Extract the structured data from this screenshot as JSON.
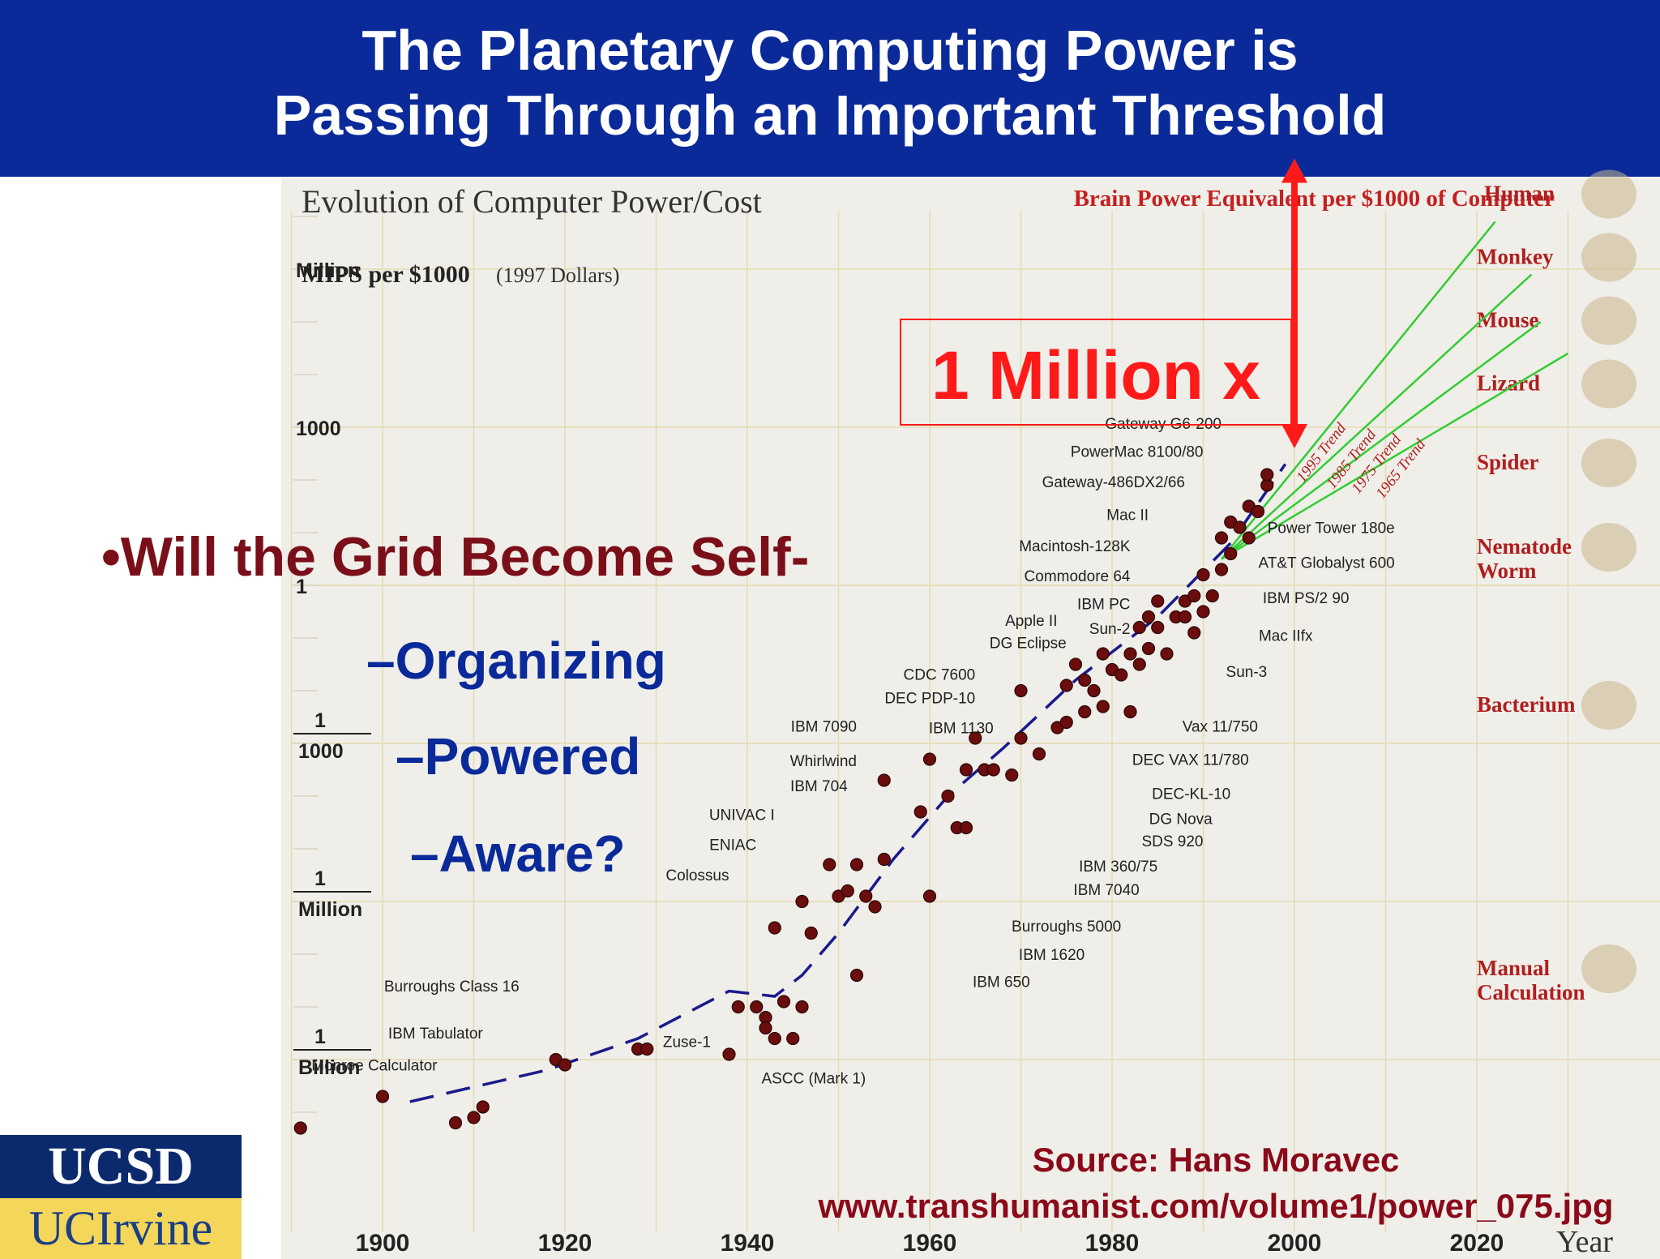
{
  "header": {
    "title": "The Planetary Computing Power is\nPassing Through an Important Threshold"
  },
  "bullets": {
    "main": "•Will the Grid Become Self-",
    "sub": [
      "–Organizing",
      "–Powered",
      "–Aware?"
    ]
  },
  "logo": {
    "top": "UCSD",
    "bottom": "UCIrvine"
  },
  "colors": {
    "header_bg": "#0b2a9a",
    "bullet_main": "#7a0f1a",
    "bullet_sub": "#0b2a9a",
    "annotation_red": "#ff1a1a",
    "source_text": "#8b0a1a",
    "dot": "#6b0d0d",
    "trend": "#33cc33",
    "dash": "#1a1a8c"
  },
  "chart_data": {
    "type": "scatter",
    "title": "Evolution of Computer Power/Cost",
    "ylabel_bold": "MIPS per $1000",
    "ylabel_note": "(1997 Dollars)",
    "right_title": "Brain Power Equivalent per $1000 of Computer",
    "xlabel": "Year",
    "y_scale": "log",
    "xlim": [
      1890,
      2030
    ],
    "ylim_log10": [
      -10.5,
      7.5
    ],
    "x_ticks": [
      1900,
      1920,
      1940,
      1960,
      1980,
      2000,
      2020
    ],
    "y_ticks": [
      {
        "log10": 6,
        "label": "Million"
      },
      {
        "log10": 3,
        "label": "1000"
      },
      {
        "log10": 0,
        "label": "1"
      },
      {
        "log10": -3,
        "label": "1\n1000"
      },
      {
        "log10": -6,
        "label": "1\nMillion"
      },
      {
        "log10": -9,
        "label": "1\nBillion"
      }
    ],
    "points": [
      {
        "x": 1891,
        "y": -10.3
      },
      {
        "x": 1900,
        "y": -9.7
      },
      {
        "x": 1908,
        "y": -10.2
      },
      {
        "x": 1910,
        "y": -10.1
      },
      {
        "x": 1911,
        "y": -9.9
      },
      {
        "x": 1919,
        "y": -9.0
      },
      {
        "x": 1920,
        "y": -9.1
      },
      {
        "x": 1928,
        "y": -8.8
      },
      {
        "x": 1929,
        "y": -8.8
      },
      {
        "x": 1938,
        "y": -8.9
      },
      {
        "x": 1939,
        "y": -8.0
      },
      {
        "x": 1941,
        "y": -8.0
      },
      {
        "x": 1942,
        "y": -8.2
      },
      {
        "x": 1942,
        "y": -8.4
      },
      {
        "x": 1943,
        "y": -8.6
      },
      {
        "x": 1944,
        "y": -7.9
      },
      {
        "x": 1945,
        "y": -8.6
      },
      {
        "x": 1946,
        "y": -8.0
      },
      {
        "x": 1943,
        "y": -6.5
      },
      {
        "x": 1946,
        "y": -6.0
      },
      {
        "x": 1947,
        "y": -6.6
      },
      {
        "x": 1949,
        "y": -5.3
      },
      {
        "x": 1950,
        "y": -5.9
      },
      {
        "x": 1951,
        "y": -5.8
      },
      {
        "x": 1952,
        "y": -5.3
      },
      {
        "x": 1952,
        "y": -7.4
      },
      {
        "x": 1953,
        "y": -5.9
      },
      {
        "x": 1954,
        "y": -6.1
      },
      {
        "x": 1955,
        "y": -3.7
      },
      {
        "x": 1955,
        "y": -5.2
      },
      {
        "x": 1959,
        "y": -4.3
      },
      {
        "x": 1960,
        "y": -3.3
      },
      {
        "x": 1960,
        "y": -5.9
      },
      {
        "x": 1962,
        "y": -4.0
      },
      {
        "x": 1963,
        "y": -4.6
      },
      {
        "x": 1964,
        "y": -4.6
      },
      {
        "x": 1964,
        "y": -3.5
      },
      {
        "x": 1965,
        "y": -2.9
      },
      {
        "x": 1966,
        "y": -3.5
      },
      {
        "x": 1967,
        "y": -3.5
      },
      {
        "x": 1969,
        "y": -3.6
      },
      {
        "x": 1970,
        "y": -2.9
      },
      {
        "x": 1970,
        "y": -2.0
      },
      {
        "x": 1972,
        "y": -3.2
      },
      {
        "x": 1974,
        "y": -2.7
      },
      {
        "x": 1975,
        "y": -2.6
      },
      {
        "x": 1975,
        "y": -1.9
      },
      {
        "x": 1976,
        "y": -1.5
      },
      {
        "x": 1977,
        "y": -2.4
      },
      {
        "x": 1977,
        "y": -1.8
      },
      {
        "x": 1978,
        "y": -2.0
      },
      {
        "x": 1979,
        "y": -1.3
      },
      {
        "x": 1979,
        "y": -2.3
      },
      {
        "x": 1980,
        "y": -1.6
      },
      {
        "x": 1981,
        "y": -1.7
      },
      {
        "x": 1982,
        "y": -2.4
      },
      {
        "x": 1982,
        "y": -1.3
      },
      {
        "x": 1983,
        "y": -0.8
      },
      {
        "x": 1983,
        "y": -1.5
      },
      {
        "x": 1984,
        "y": -1.2
      },
      {
        "x": 1984,
        "y": -0.6
      },
      {
        "x": 1985,
        "y": -0.8
      },
      {
        "x": 1985,
        "y": -0.3
      },
      {
        "x": 1986,
        "y": -1.3
      },
      {
        "x": 1987,
        "y": -0.6
      },
      {
        "x": 1988,
        "y": -0.6
      },
      {
        "x": 1988,
        "y": -0.3
      },
      {
        "x": 1989,
        "y": -0.9
      },
      {
        "x": 1989,
        "y": -0.2
      },
      {
        "x": 1990,
        "y": -0.5
      },
      {
        "x": 1990,
        "y": 0.2
      },
      {
        "x": 1991,
        "y": -0.2
      },
      {
        "x": 1992,
        "y": 0.3
      },
      {
        "x": 1992,
        "y": 0.9
      },
      {
        "x": 1993,
        "y": 0.6
      },
      {
        "x": 1993,
        "y": 1.2
      },
      {
        "x": 1994,
        "y": 1.1
      },
      {
        "x": 1995,
        "y": 1.5
      },
      {
        "x": 1995,
        "y": 0.9
      },
      {
        "x": 1996,
        "y": 1.4
      },
      {
        "x": 1997,
        "y": 1.9
      },
      {
        "x": 1997,
        "y": 2.1
      }
    ],
    "point_labels": [
      {
        "text": "Gateway G6-200",
        "x": 1992,
        "y": 2.97
      },
      {
        "text": "PowerMac 8100/80",
        "x": 1990,
        "y": 2.44
      },
      {
        "text": "Gateway-486DX2/66",
        "x": 1988,
        "y": 1.86
      },
      {
        "text": "Mac II",
        "x": 1984,
        "y": 1.24
      },
      {
        "text": "Macintosh-128K",
        "x": 1982,
        "y": 0.65
      },
      {
        "text": "Commodore 64",
        "x": 1982,
        "y": 0.08
      },
      {
        "text": "IBM PC",
        "x": 1982,
        "y": -0.45
      },
      {
        "text": "Sun-2",
        "x": 1982,
        "y": -0.92
      },
      {
        "text": "Apple II",
        "x": 1974,
        "y": -0.77
      },
      {
        "text": "DG Eclipse",
        "x": 1975,
        "y": -1.19
      },
      {
        "text": "CDC 7600",
        "x": 1965,
        "y": -1.79
      },
      {
        "text": "DEC PDP-10",
        "x": 1965,
        "y": -2.24
      },
      {
        "text": "IBM 7090",
        "x": 1952,
        "y": -2.78
      },
      {
        "text": "IBM 1130",
        "x": 1967,
        "y": -2.81
      },
      {
        "text": "Whirlwind",
        "x": 1952,
        "y": -3.43
      },
      {
        "text": "IBM 704",
        "x": 1951,
        "y": -3.91
      },
      {
        "text": "UNIVAC I",
        "x": 1943,
        "y": -4.45
      },
      {
        "text": "ENIAC",
        "x": 1941,
        "y": -5.02
      },
      {
        "text": "Colossus",
        "x": 1938,
        "y": -5.6
      },
      {
        "text": "Power Tower 180e",
        "x": 2011,
        "y": 0.99
      },
      {
        "text": "AT&T Globalyst 600",
        "x": 2011,
        "y": 0.33
      },
      {
        "text": "IBM PS/2 90",
        "x": 2006,
        "y": -0.34
      },
      {
        "text": "Mac IIfx",
        "x": 2002,
        "y": -1.05
      },
      {
        "text": "Sun-3",
        "x": 1997,
        "y": -1.74
      },
      {
        "text": "Vax 11/750",
        "x": 1996,
        "y": -2.78
      },
      {
        "text": "DEC VAX 11/780",
        "x": 1995,
        "y": -3.41
      },
      {
        "text": "DEC-KL-10",
        "x": 1993,
        "y": -4.05
      },
      {
        "text": "DG Nova",
        "x": 1991,
        "y": -4.53
      },
      {
        "text": "SDS 920",
        "x": 1990,
        "y": -4.95
      },
      {
        "text": "IBM 360/75",
        "x": 1985,
        "y": -5.43
      },
      {
        "text": "IBM 7040",
        "x": 1983,
        "y": -5.88
      },
      {
        "text": "Burroughs 5000",
        "x": 1981,
        "y": -6.57
      },
      {
        "text": "IBM 1620",
        "x": 1977,
        "y": -7.11
      },
      {
        "text": "IBM 650",
        "x": 1971,
        "y": -7.62
      },
      {
        "text": "Burroughs Class 16",
        "x": 1915,
        "y": -7.71
      },
      {
        "text": "IBM Tabulator",
        "x": 1911,
        "y": -8.6
      },
      {
        "text": "Monroe Calculator",
        "x": 1906,
        "y": -9.21
      },
      {
        "text": "Zuse-1",
        "x": 1936,
        "y": -8.76
      },
      {
        "text": "ASCC (Mark 1)",
        "x": 1953,
        "y": -9.45
      }
    ],
    "trends": [
      {
        "name": "1995 Trend",
        "x0": 1992,
        "y0": 0.5,
        "x1": 2022,
        "y1": 6.9
      },
      {
        "name": "1985 Trend",
        "x0": 1992,
        "y0": 0.5,
        "x1": 2026,
        "y1": 5.9
      },
      {
        "name": "1975 Trend",
        "x0": 1992,
        "y0": 0.5,
        "x1": 2027,
        "y1": 5.0
      },
      {
        "name": "1965 Trend",
        "x0": 1992,
        "y0": 0.5,
        "x1": 2030,
        "y1": 4.4
      }
    ],
    "dashed_fit": [
      {
        "x": 1903,
        "y": -9.8
      },
      {
        "x": 1918,
        "y": -9.2
      },
      {
        "x": 1928,
        "y": -8.6
      },
      {
        "x": 1938,
        "y": -7.7
      },
      {
        "x": 1943,
        "y": -7.8
      },
      {
        "x": 1946,
        "y": -7.4
      },
      {
        "x": 1950,
        "y": -6.6
      },
      {
        "x": 1956,
        "y": -5.2
      },
      {
        "x": 1962,
        "y": -4.0
      },
      {
        "x": 1968,
        "y": -3.1
      },
      {
        "x": 1976,
        "y": -1.8
      },
      {
        "x": 1985,
        "y": -0.6
      },
      {
        "x": 1993,
        "y": 0.8
      },
      {
        "x": 1999,
        "y": 2.3
      }
    ],
    "brain_equivalents": [
      {
        "name": "Human"
      },
      {
        "name": "Monkey"
      },
      {
        "name": "Mouse"
      },
      {
        "name": "Lizard"
      },
      {
        "name": "Spider"
      },
      {
        "name": "Nematode\nWorm"
      },
      {
        "name": "Bacterium"
      },
      {
        "name": "Manual\nCalculation"
      }
    ],
    "annotation": {
      "text": "1 Million x",
      "x": 2000,
      "from_log10": 2.6,
      "to_log10": 8.1
    },
    "source": {
      "line1": "Source: Hans Moravec",
      "line2": "www.transhumanist.com/volume1/power_075.jpg"
    }
  }
}
